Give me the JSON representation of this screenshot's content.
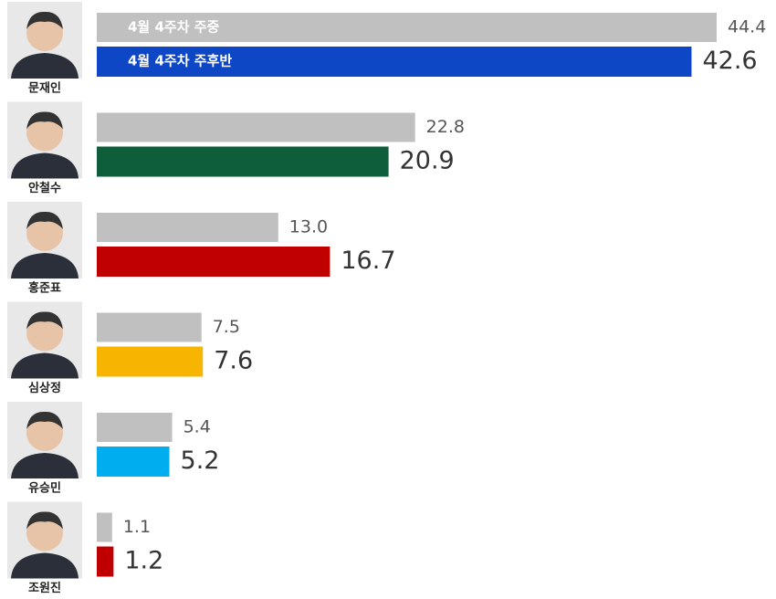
{
  "chart_data": {
    "type": "bar",
    "orientation": "horizontal",
    "categories": [
      "문재인",
      "안철수",
      "홍준표",
      "심상정",
      "유승민",
      "조원진"
    ],
    "series": [
      {
        "name": "4월 4주차 주중",
        "color": "#c0c0c0",
        "values": [
          44.4,
          22.8,
          13.0,
          7.5,
          5.4,
          1.1
        ],
        "value_labels": [
          "44.4",
          "22.8",
          "13.0",
          "7.5",
          "5.4",
          "1.1"
        ]
      },
      {
        "name": "4월 4주차 주후반",
        "colors": [
          "#0d47c6",
          "#0e5e3c",
          "#c00000",
          "#f7b400",
          "#00aeef",
          "#c00000"
        ],
        "values": [
          42.6,
          20.9,
          16.7,
          7.6,
          5.2,
          1.2
        ],
        "value_labels": [
          "42.6",
          "20.9",
          "16.7",
          "7.6",
          "5.2",
          "1.2"
        ]
      }
    ]
  }
}
